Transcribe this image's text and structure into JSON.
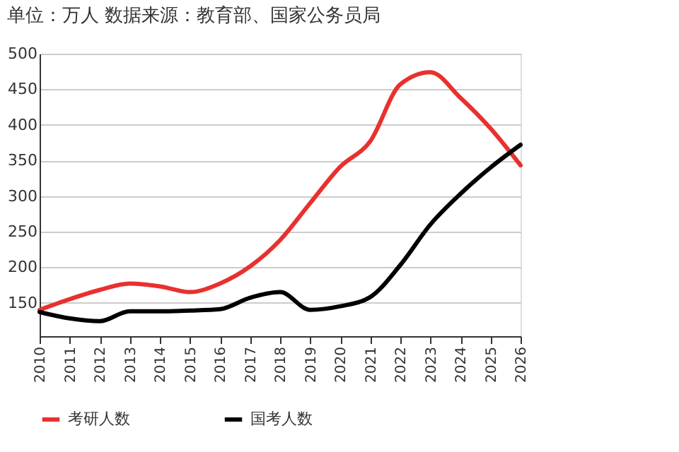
{
  "chart_data": {
    "type": "line",
    "title": "单位：万人   数据来源：教育部、国家公务员局",
    "x": [
      2010,
      2011,
      2012,
      2013,
      2014,
      2015,
      2016,
      2017,
      2018,
      2019,
      2020,
      2021,
      2022,
      2023,
      2024,
      2025,
      2026
    ],
    "series": [
      {
        "name": "考研人数",
        "color": "#e8312f",
        "values": [
          140,
          155,
          168,
          177,
          173,
          165,
          177,
          201,
          238,
          290,
          341,
          377,
          457,
          474,
          438,
          395,
          343
        ]
      },
      {
        "name": "国考人数",
        "color": "#000000",
        "values": [
          137,
          128,
          124,
          138,
          138,
          139,
          141,
          157,
          165,
          140,
          145,
          158,
          203,
          260,
          303,
          340,
          372
        ]
      }
    ],
    "xlim": [
      2010,
      2026
    ],
    "xticks": [
      2010,
      2011,
      2012,
      2013,
      2014,
      2015,
      2016,
      2017,
      2018,
      2019,
      2020,
      2021,
      2022,
      2023,
      2024,
      2025,
      2026
    ],
    "ylim": [
      103,
      500
    ],
    "yticks": [
      150,
      200,
      250,
      300,
      350,
      400,
      450,
      500
    ],
    "grid": "y",
    "legend": "bottom",
    "marker": "none",
    "line_style": "solid"
  }
}
